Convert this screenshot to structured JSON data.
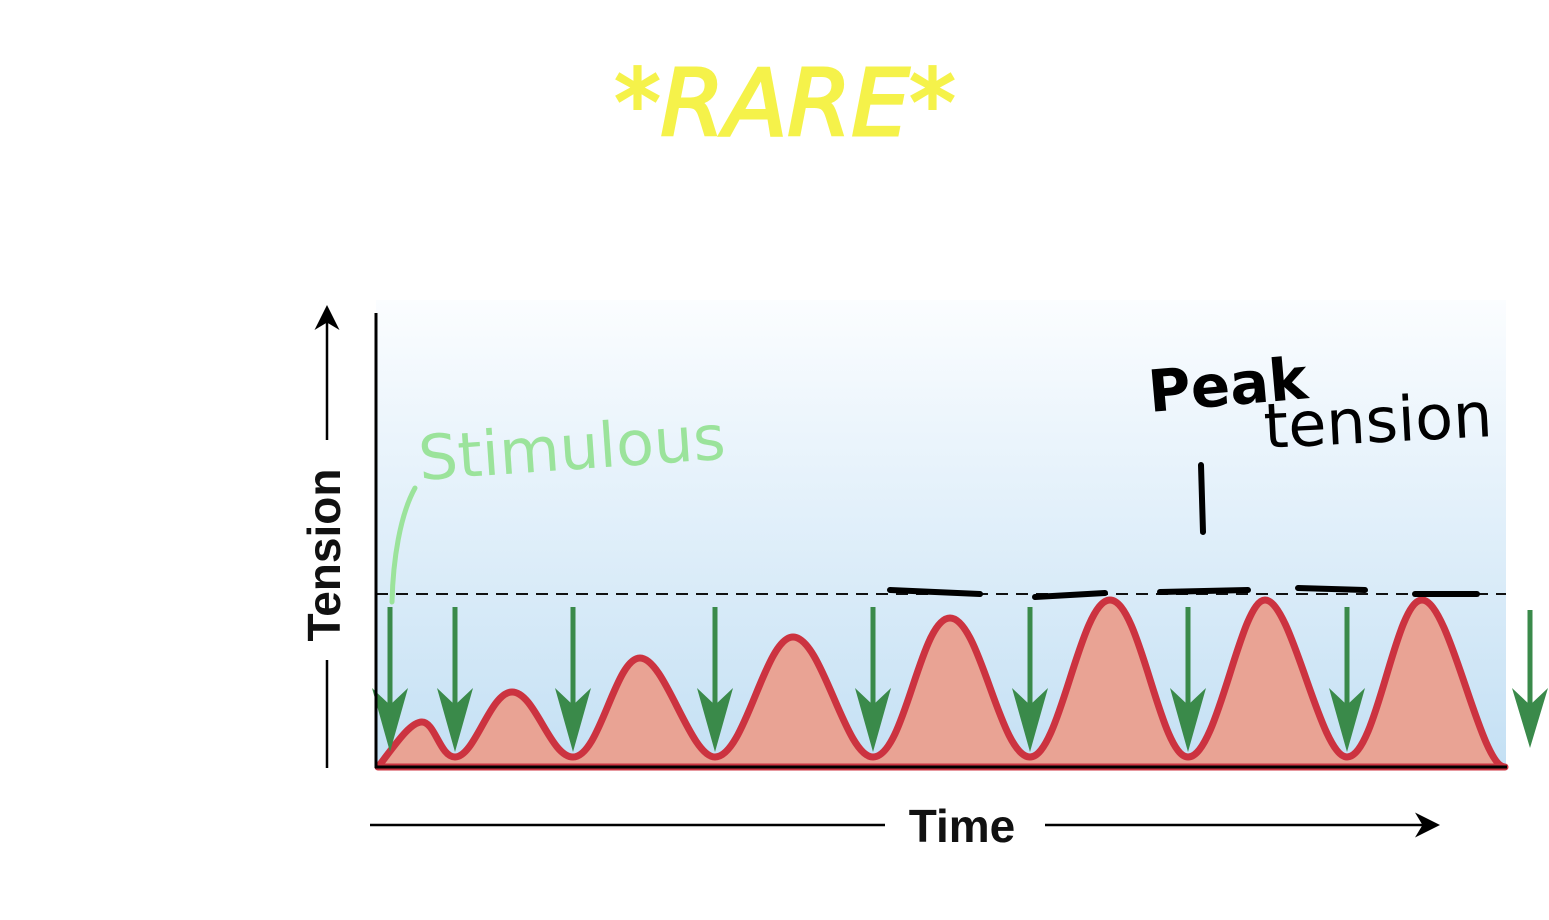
{
  "annotations": {
    "title": "*RARE*",
    "stimulus_label": "Stimulous",
    "peak_label_line1": "Peak",
    "peak_label_line2": "tension"
  },
  "axes": {
    "y_label": "Tension",
    "x_label": "Time"
  },
  "colors": {
    "title_highlight": "#f5f24a",
    "stimulus_annotation": "#9be39b",
    "curve_stroke": "#cc3340",
    "curve_fill": "#e9a394",
    "stimulus_arrow": "#3a8a4a",
    "background_gradient_top": "#f4f9fd",
    "background_gradient_bottom": "#c4e0f4"
  }
}
